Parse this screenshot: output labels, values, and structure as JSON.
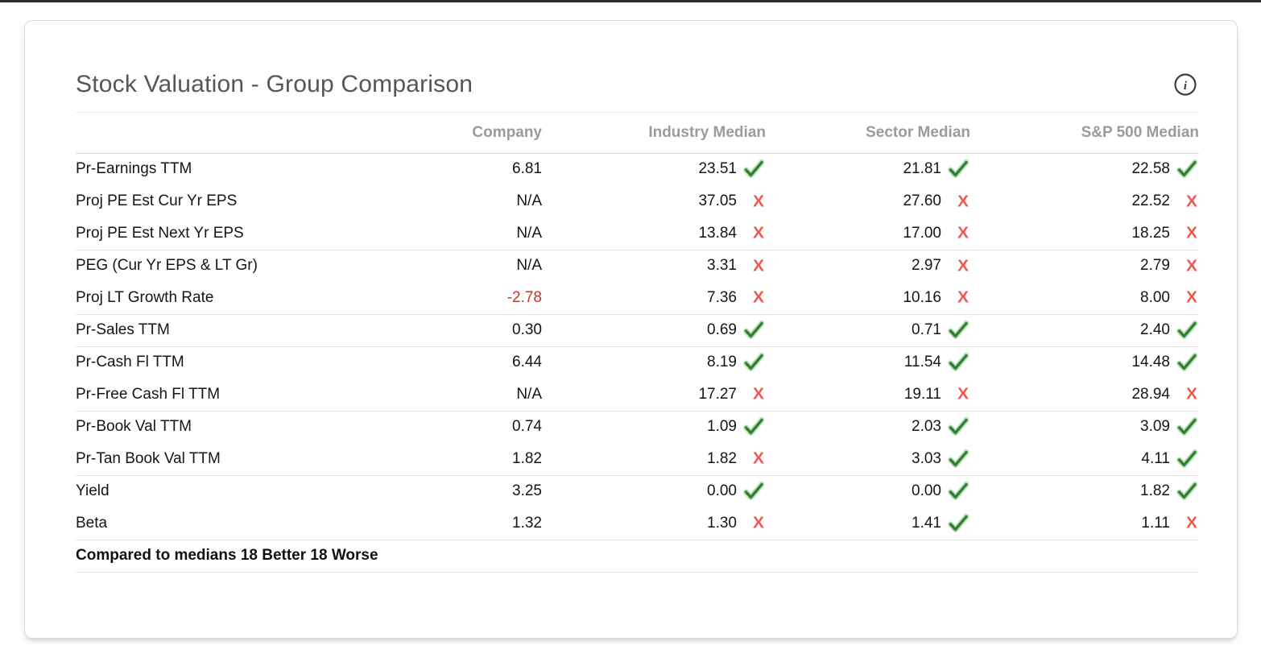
{
  "header": {
    "title": "Stock Valuation - Group Comparison"
  },
  "colors": {
    "check_green": "#2f7d32",
    "check_halo": "#b9ddb5",
    "cross_red": "#ef5a50",
    "negative_red": "#bf3a2b"
  },
  "table": {
    "columns": [
      {
        "key": "company",
        "label": "Company"
      },
      {
        "key": "industry",
        "label": "Industry Median"
      },
      {
        "key": "sector",
        "label": "Sector Median"
      },
      {
        "key": "sp500",
        "label": "S&P 500 Median"
      }
    ],
    "rows": [
      {
        "label": "Pr-Earnings TTM",
        "company": "6.81",
        "company_negative": false,
        "group_start": false,
        "industry": {
          "value": "23.51",
          "mark": "check"
        },
        "sector": {
          "value": "21.81",
          "mark": "check"
        },
        "sp500": {
          "value": "22.58",
          "mark": "check"
        }
      },
      {
        "label": "Proj PE Est Cur Yr EPS",
        "company": "N/A",
        "company_negative": false,
        "group_start": false,
        "industry": {
          "value": "37.05",
          "mark": "cross"
        },
        "sector": {
          "value": "27.60",
          "mark": "cross"
        },
        "sp500": {
          "value": "22.52",
          "mark": "cross"
        }
      },
      {
        "label": "Proj PE Est Next Yr EPS",
        "company": "N/A",
        "company_negative": false,
        "group_start": false,
        "industry": {
          "value": "13.84",
          "mark": "cross"
        },
        "sector": {
          "value": "17.00",
          "mark": "cross"
        },
        "sp500": {
          "value": "18.25",
          "mark": "cross"
        }
      },
      {
        "label": "PEG (Cur Yr EPS & LT Gr)",
        "company": "N/A",
        "company_negative": false,
        "group_start": true,
        "industry": {
          "value": "3.31",
          "mark": "cross"
        },
        "sector": {
          "value": "2.97",
          "mark": "cross"
        },
        "sp500": {
          "value": "2.79",
          "mark": "cross"
        }
      },
      {
        "label": "Proj LT Growth Rate",
        "company": "-2.78",
        "company_negative": true,
        "group_start": false,
        "industry": {
          "value": "7.36",
          "mark": "cross"
        },
        "sector": {
          "value": "10.16",
          "mark": "cross"
        },
        "sp500": {
          "value": "8.00",
          "mark": "cross"
        }
      },
      {
        "label": "Pr-Sales TTM",
        "company": "0.30",
        "company_negative": false,
        "group_start": true,
        "industry": {
          "value": "0.69",
          "mark": "check"
        },
        "sector": {
          "value": "0.71",
          "mark": "check"
        },
        "sp500": {
          "value": "2.40",
          "mark": "check"
        }
      },
      {
        "label": "Pr-Cash Fl TTM",
        "company": "6.44",
        "company_negative": false,
        "group_start": true,
        "industry": {
          "value": "8.19",
          "mark": "check"
        },
        "sector": {
          "value": "11.54",
          "mark": "check"
        },
        "sp500": {
          "value": "14.48",
          "mark": "check"
        }
      },
      {
        "label": "Pr-Free Cash Fl TTM",
        "company": "N/A",
        "company_negative": false,
        "group_start": false,
        "industry": {
          "value": "17.27",
          "mark": "cross"
        },
        "sector": {
          "value": "19.11",
          "mark": "cross"
        },
        "sp500": {
          "value": "28.94",
          "mark": "cross"
        }
      },
      {
        "label": "Pr-Book Val TTM",
        "company": "0.74",
        "company_negative": false,
        "group_start": true,
        "industry": {
          "value": "1.09",
          "mark": "check"
        },
        "sector": {
          "value": "2.03",
          "mark": "check"
        },
        "sp500": {
          "value": "3.09",
          "mark": "check"
        }
      },
      {
        "label": "Pr-Tan Book Val TTM",
        "company": "1.82",
        "company_negative": false,
        "group_start": false,
        "industry": {
          "value": "1.82",
          "mark": "cross"
        },
        "sector": {
          "value": "3.03",
          "mark": "check"
        },
        "sp500": {
          "value": "4.11",
          "mark": "check"
        }
      },
      {
        "label": "Yield",
        "company": "3.25",
        "company_negative": false,
        "group_start": true,
        "industry": {
          "value": "0.00",
          "mark": "check"
        },
        "sector": {
          "value": "0.00",
          "mark": "check"
        },
        "sp500": {
          "value": "1.82",
          "mark": "check"
        }
      },
      {
        "label": "Beta",
        "company": "1.32",
        "company_negative": false,
        "group_start": false,
        "industry": {
          "value": "1.30",
          "mark": "cross"
        },
        "sector": {
          "value": "1.41",
          "mark": "check"
        },
        "sp500": {
          "value": "1.11",
          "mark": "cross"
        }
      }
    ],
    "footer": "Compared to medians 18 Better 18 Worse"
  },
  "icons": {
    "info": "info-icon",
    "better": "check-icon",
    "worse": "x-icon"
  }
}
